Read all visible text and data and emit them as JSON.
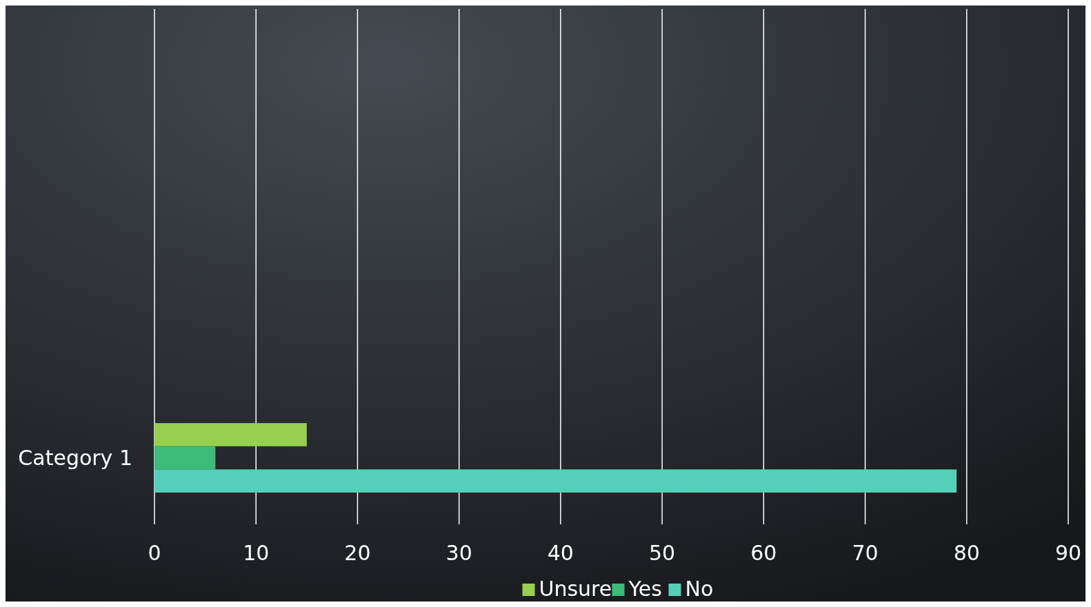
{
  "chart_data": {
    "type": "bar",
    "orientation": "horizontal",
    "categories": [
      "Category 1"
    ],
    "series": [
      {
        "name": "Unsure",
        "color": "#97d04e",
        "values": [
          15
        ]
      },
      {
        "name": "Yes",
        "color": "#3dbb78",
        "values": [
          6
        ]
      },
      {
        "name": "No",
        "color": "#55d0b8",
        "values": [
          79
        ]
      }
    ],
    "xlim": [
      0,
      90
    ],
    "xticks": [
      0,
      10,
      20,
      30,
      40,
      50,
      60,
      70,
      80,
      90
    ],
    "grid": "x",
    "legend": "bottom"
  }
}
